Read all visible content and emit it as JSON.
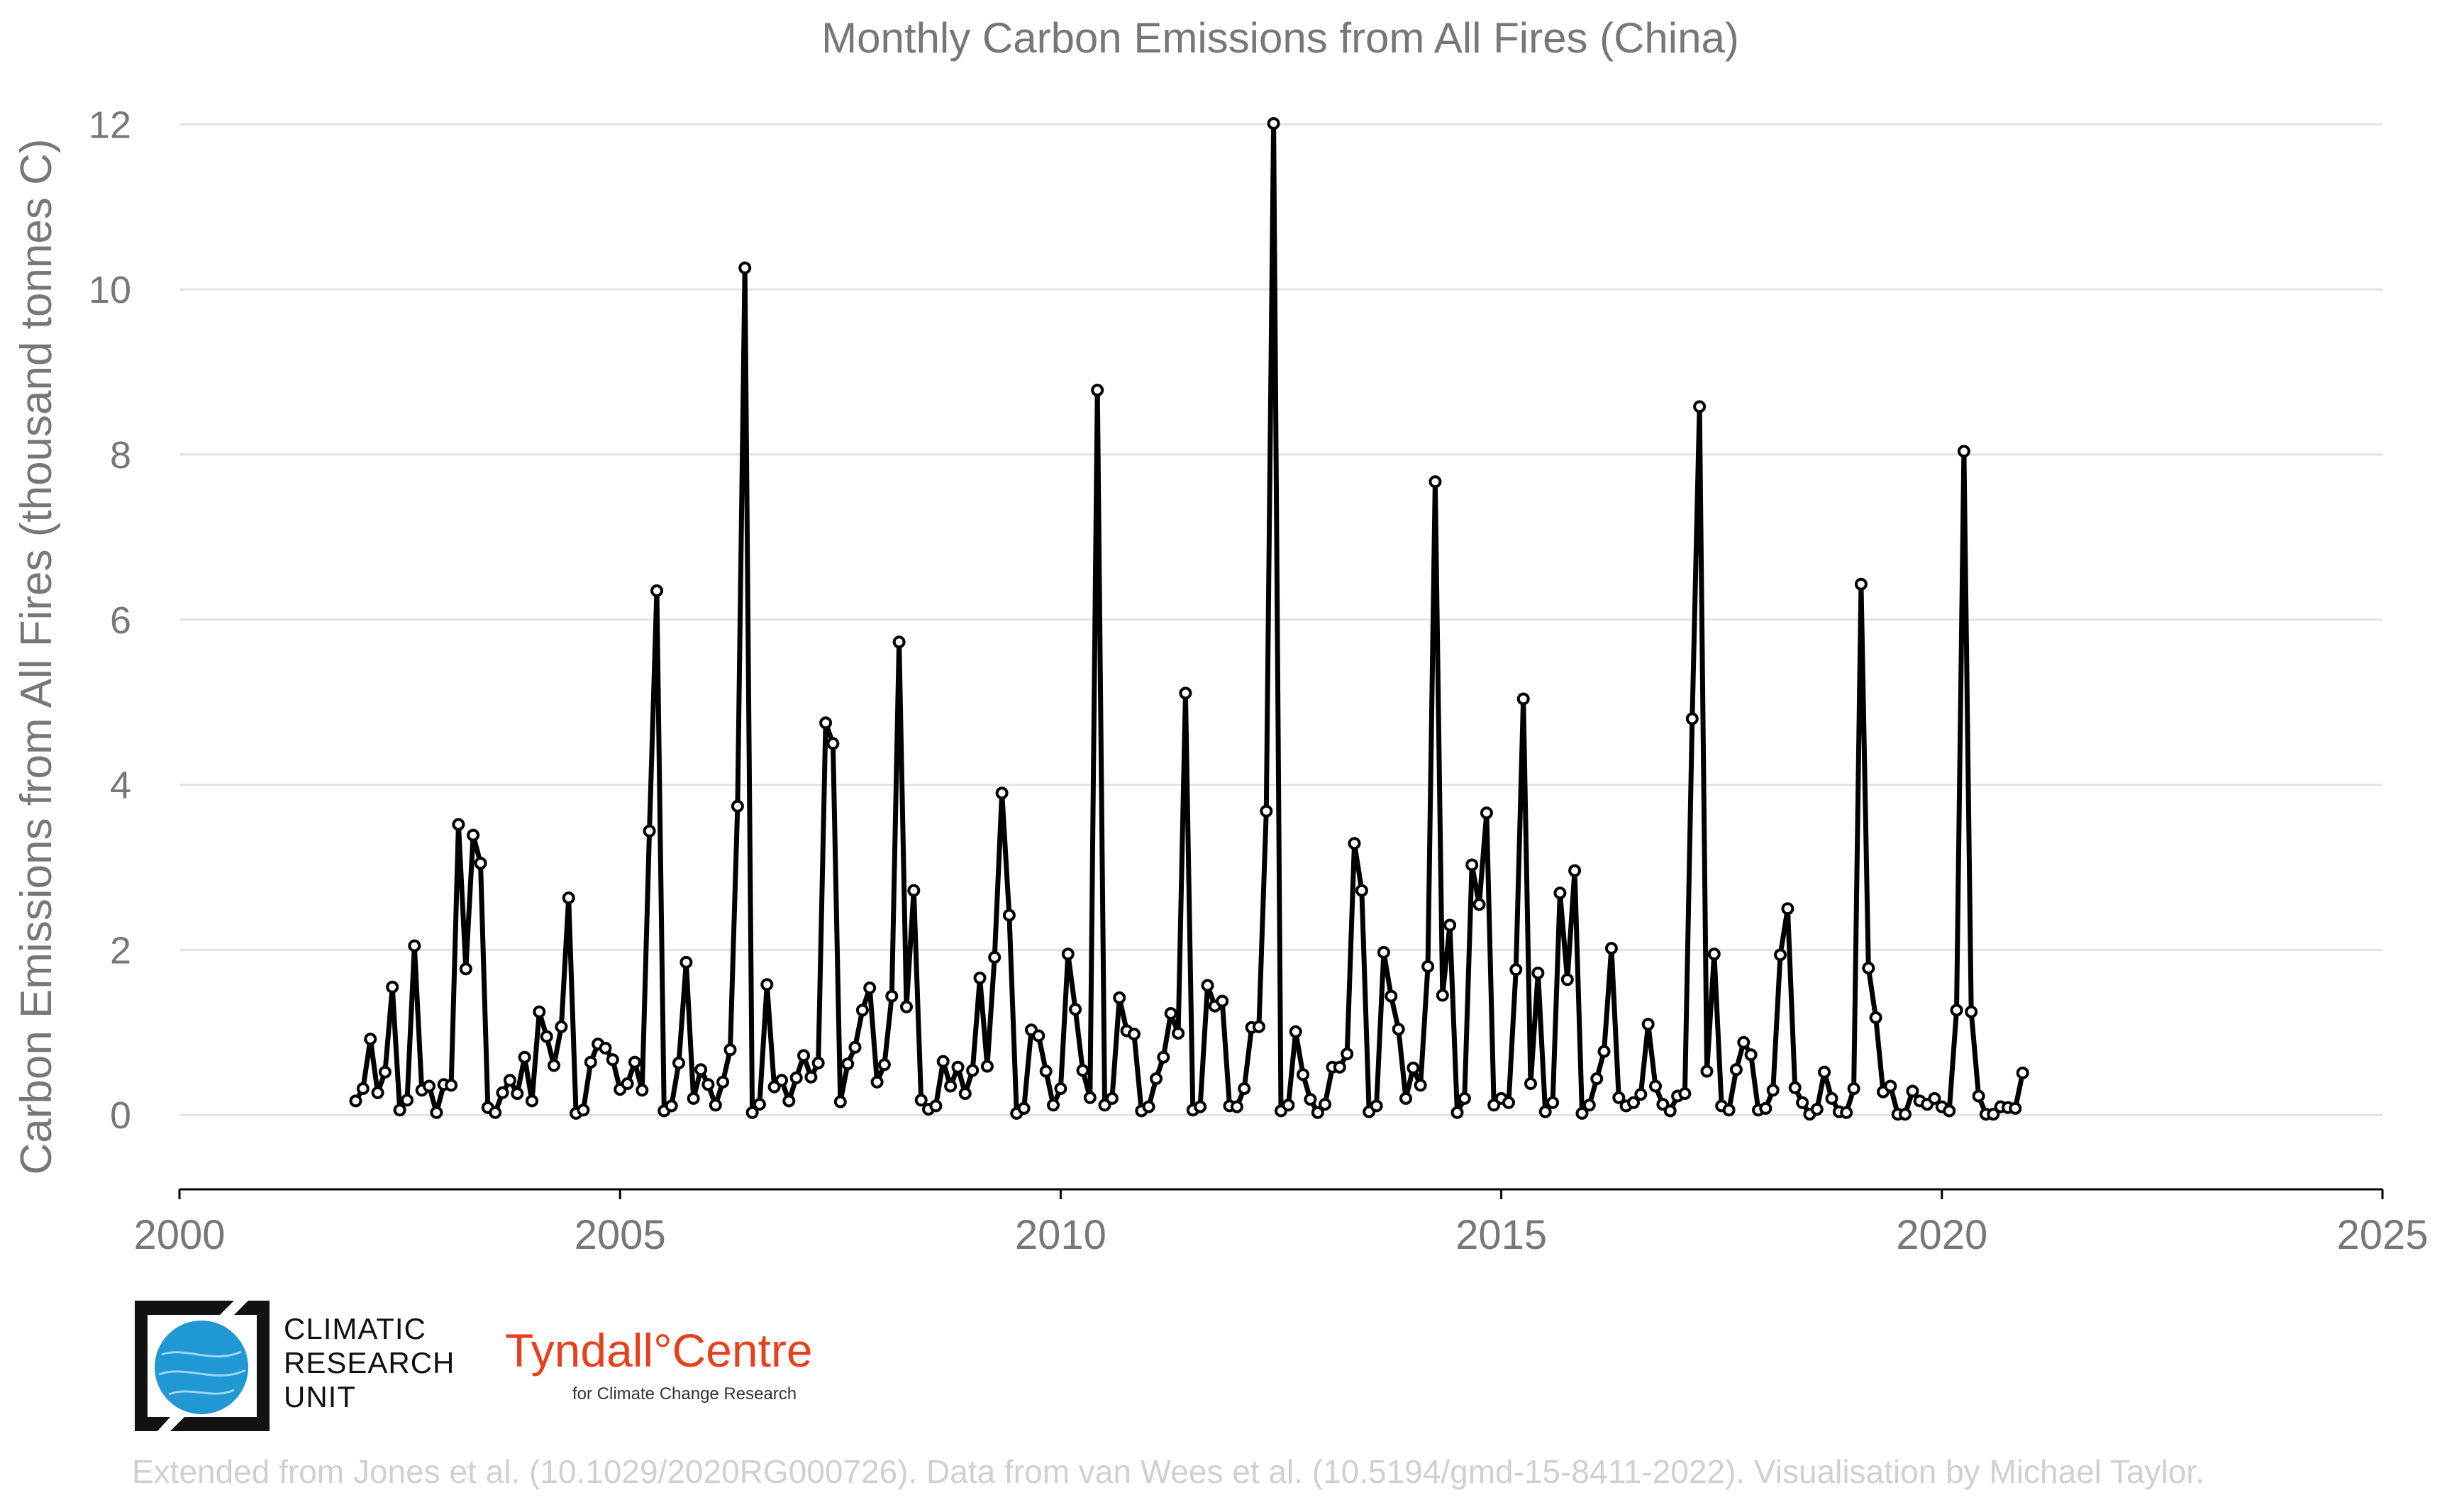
{
  "chart_data": {
    "type": "line",
    "title": "Monthly Carbon Emissions from All Fires (China)",
    "xlabel": "",
    "ylabel": "Carbon Emissions from All Fires (thousand tonnes C)",
    "xlim": [
      2000,
      2025
    ],
    "ylim": [
      -0.9,
      12.2
    ],
    "xticks": [
      2000,
      2005,
      2010,
      2015,
      2020,
      2025
    ],
    "yticks": [
      0,
      2,
      4,
      6,
      8,
      10,
      12
    ],
    "grid": "horizontal",
    "legend": "none",
    "series": [
      {
        "start": "2002-01",
        "values": [
          0.17,
          0.32,
          0.92,
          0.27,
          0.52,
          1.55,
          0.06,
          0.18,
          2.05,
          0.3,
          0.35,
          0.03,
          0.37,
          0.36,
          3.52,
          1.77,
          3.39,
          3.05,
          0.09,
          0.03,
          0.27,
          0.42,
          0.26,
          0.7,
          0.17,
          1.25,
          0.95,
          0.6,
          1.07,
          2.63,
          0.02,
          0.06,
          0.64,
          0.86,
          0.81,
          0.67,
          0.31,
          0.38,
          0.64,
          0.3,
          3.44,
          6.35,
          0.05,
          0.11,
          0.63,
          1.85,
          0.2,
          0.55,
          0.37,
          0.12,
          0.4,
          0.79,
          3.74,
          10.26,
          0.03,
          0.13,
          1.58,
          0.34,
          0.42,
          0.17,
          0.45,
          0.72,
          0.46,
          0.63,
          4.75,
          4.5,
          0.16,
          0.62,
          0.82,
          1.27,
          1.54,
          0.4,
          0.61,
          1.44,
          5.73,
          1.31,
          2.72,
          0.18,
          0.07,
          0.11,
          0.65,
          0.35,
          0.58,
          0.26,
          0.54,
          1.66,
          0.59,
          1.91,
          3.9,
          2.42,
          0.02,
          0.08,
          1.03,
          0.96,
          0.53,
          0.12,
          0.32,
          1.95,
          1.28,
          0.54,
          0.21,
          8.78,
          0.12,
          0.2,
          1.42,
          1.02,
          0.98,
          0.05,
          0.1,
          0.44,
          0.7,
          1.23,
          0.99,
          5.11,
          0.06,
          0.1,
          1.57,
          1.32,
          1.38,
          0.11,
          0.1,
          0.32,
          1.06,
          1.07,
          3.68,
          12.01,
          0.05,
          0.12,
          1.01,
          0.49,
          0.19,
          0.03,
          0.13,
          0.58,
          0.58,
          0.74,
          3.29,
          2.72,
          0.04,
          0.11,
          1.97,
          1.44,
          1.04,
          0.2,
          0.57,
          0.36,
          1.8,
          7.67,
          1.45,
          2.3,
          0.03,
          0.2,
          3.03,
          2.55,
          3.66,
          0.12,
          0.2,
          0.15,
          1.76,
          5.04,
          0.38,
          1.72,
          0.04,
          0.15,
          2.69,
          1.64,
          2.96,
          0.02,
          0.12,
          0.44,
          0.77,
          2.02,
          0.21,
          0.11,
          0.15,
          0.25,
          1.1,
          0.35,
          0.13,
          0.05,
          0.23,
          0.26,
          4.8,
          8.58,
          0.53,
          1.95,
          0.11,
          0.06,
          0.55,
          0.88,
          0.73,
          0.06,
          0.08,
          0.3,
          1.94,
          2.5,
          0.33,
          0.15,
          0.01,
          0.07,
          0.52,
          0.2,
          0.04,
          0.03,
          0.32,
          6.43,
          1.78,
          1.18,
          0.28,
          0.35,
          0.01,
          0.01,
          0.29,
          0.17,
          0.13,
          0.2,
          0.1,
          0.05,
          1.27,
          8.04,
          1.25,
          0.23,
          0.01,
          0.01,
          0.1,
          0.09,
          0.08,
          0.51
        ]
      }
    ]
  },
  "logos": {
    "cru_line1": "CLIMATIC",
    "cru_line2": "RESEARCH",
    "cru_line3": "UNIT",
    "tyndall_main": "Tyndall°Centre",
    "tyndall_sub": "for Climate Change Research"
  },
  "credit": "Extended from Jones et al. (10.1029/2020RG000726). Data from van Wees et al. (10.5194/gmd-15-8411-2022). Visualisation by Michael Taylor."
}
